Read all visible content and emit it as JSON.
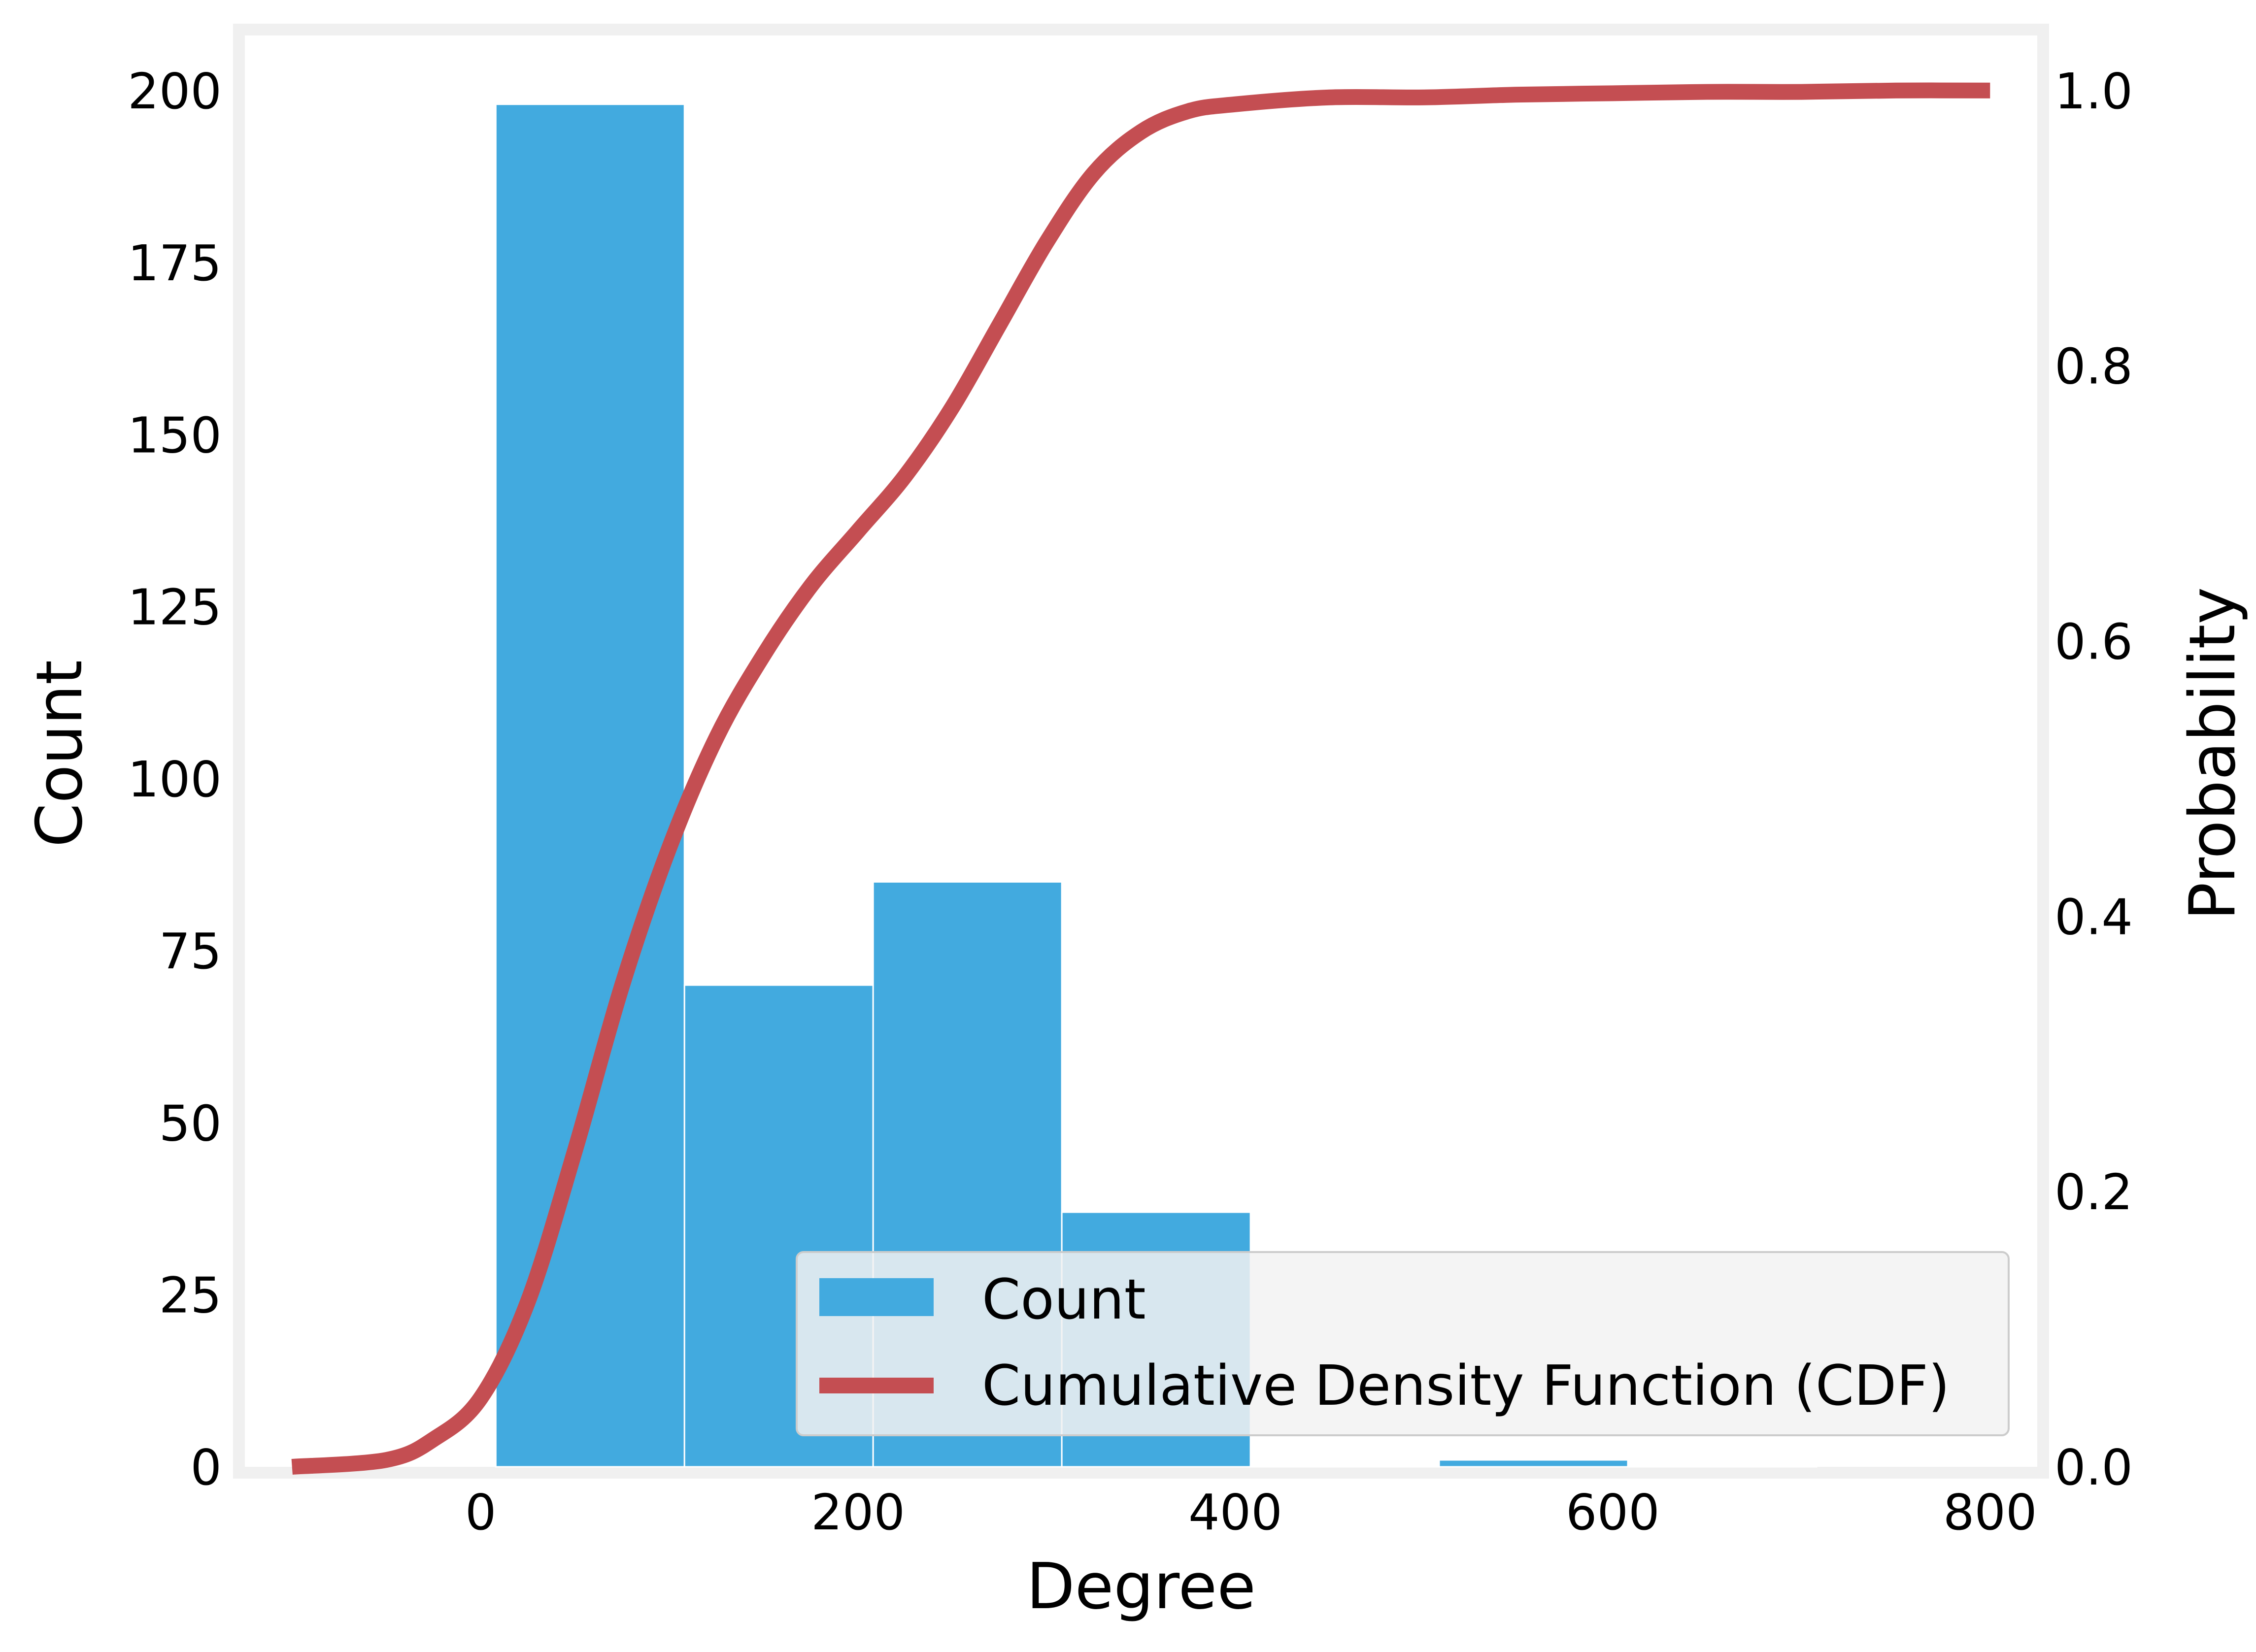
{
  "chart_data": {
    "type": "bar",
    "xlabel": "Degree",
    "ylabel": "Count",
    "y2label": "Probability",
    "xlim": [
      -125,
      825
    ],
    "ylim": [
      0,
      208
    ],
    "y2lim": [
      0,
      1.04
    ],
    "xticks": [
      "0",
      "200",
      "400",
      "600",
      "800"
    ],
    "yticks": [
      "0",
      "25",
      "50",
      "75",
      "100",
      "125",
      "150",
      "175",
      "200"
    ],
    "y2ticks": [
      "0.0",
      "0.2",
      "0.4",
      "0.6",
      "0.8",
      "1.0"
    ],
    "grid": false,
    "legend_position": "lower-right",
    "colors": {
      "bars": "#42aadf",
      "cdf": "#c44e52",
      "frame": "#f0f0f0",
      "legend_bg": "#f2f2f2"
    },
    "histogram": {
      "name": "Count",
      "bin_edges": [
        8,
        108,
        208,
        308,
        408,
        508,
        608,
        708
      ],
      "counts": [
        198,
        70,
        85,
        37,
        0,
        1,
        0
      ]
    },
    "cdf": {
      "name": "Cumulative Density Function (CDF)",
      "x": [
        -100,
        -50,
        -25,
        0,
        25,
        50,
        75,
        100,
        125,
        150,
        175,
        200,
        225,
        250,
        275,
        300,
        325,
        350,
        375,
        400,
        450,
        500,
        550,
        600,
        650,
        700,
        750,
        800
      ],
      "y": [
        0.0,
        0.005,
        0.02,
        0.05,
        0.12,
        0.23,
        0.35,
        0.45,
        0.53,
        0.59,
        0.64,
        0.68,
        0.72,
        0.77,
        0.83,
        0.89,
        0.94,
        0.97,
        0.985,
        0.99,
        0.995,
        0.995,
        0.997,
        0.998,
        0.999,
        0.999,
        1.0,
        1.0
      ]
    }
  }
}
